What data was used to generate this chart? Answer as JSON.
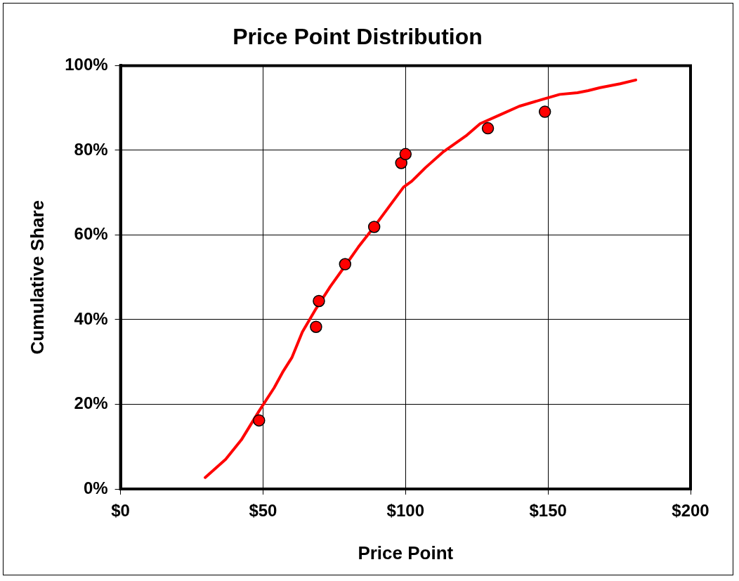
{
  "chart_data": {
    "type": "scatter",
    "title": "Price Point Distribution",
    "xlabel": "Price Point",
    "ylabel": "Cumulative Share",
    "xlim": [
      0,
      200
    ],
    "xticks": [
      {
        "value": 0,
        "label": "$0"
      },
      {
        "value": 50,
        "label": "$50"
      },
      {
        "value": 100,
        "label": "$100"
      },
      {
        "value": 150,
        "label": "$150"
      },
      {
        "value": 200,
        "label": "$200"
      }
    ],
    "ylim": [
      0,
      100
    ],
    "yticks": [
      {
        "value": 0,
        "label": "0%"
      },
      {
        "value": 20,
        "label": "20%"
      },
      {
        "value": 40,
        "label": "40%"
      },
      {
        "value": 60,
        "label": "60%"
      },
      {
        "value": 80,
        "label": "80%"
      },
      {
        "value": 100,
        "label": "100%"
      }
    ],
    "grid": true,
    "legend": false,
    "marker": "circle",
    "series": [
      {
        "type": "line",
        "color": "#ff0000",
        "marker": "none",
        "x": [
          29.7,
          36.9,
          42.4,
          48.6,
          53.9,
          56.9,
          60.1,
          63.8,
          68.6,
          73.6,
          79,
          83.5,
          89.3,
          95,
          99.3,
          102.2,
          107,
          113,
          121.2,
          126.2,
          133.2,
          139.9,
          147.9,
          154.1,
          160.3,
          164.1,
          168.3,
          175.3,
          180.8
        ],
        "values": [
          2.7,
          7,
          11.6,
          18.4,
          23.9,
          27.6,
          31,
          37.1,
          42.6,
          47.8,
          52.9,
          57.2,
          62.2,
          67.4,
          71.3,
          72.7,
          75.9,
          79.5,
          83.4,
          86.3,
          88.4,
          90.4,
          92,
          93.2,
          93.6,
          94.1,
          94.8,
          95.7,
          96.6
        ]
      },
      {
        "color": "#ff0000",
        "x": [
          48.6,
          68.6,
          69.6,
          78.8,
          89,
          98.5,
          100,
          128.9,
          148.9
        ],
        "values": [
          16.2,
          38.3,
          44.4,
          53.1,
          61.9,
          77,
          79.1,
          85.2,
          89.1
        ]
      }
    ]
  }
}
